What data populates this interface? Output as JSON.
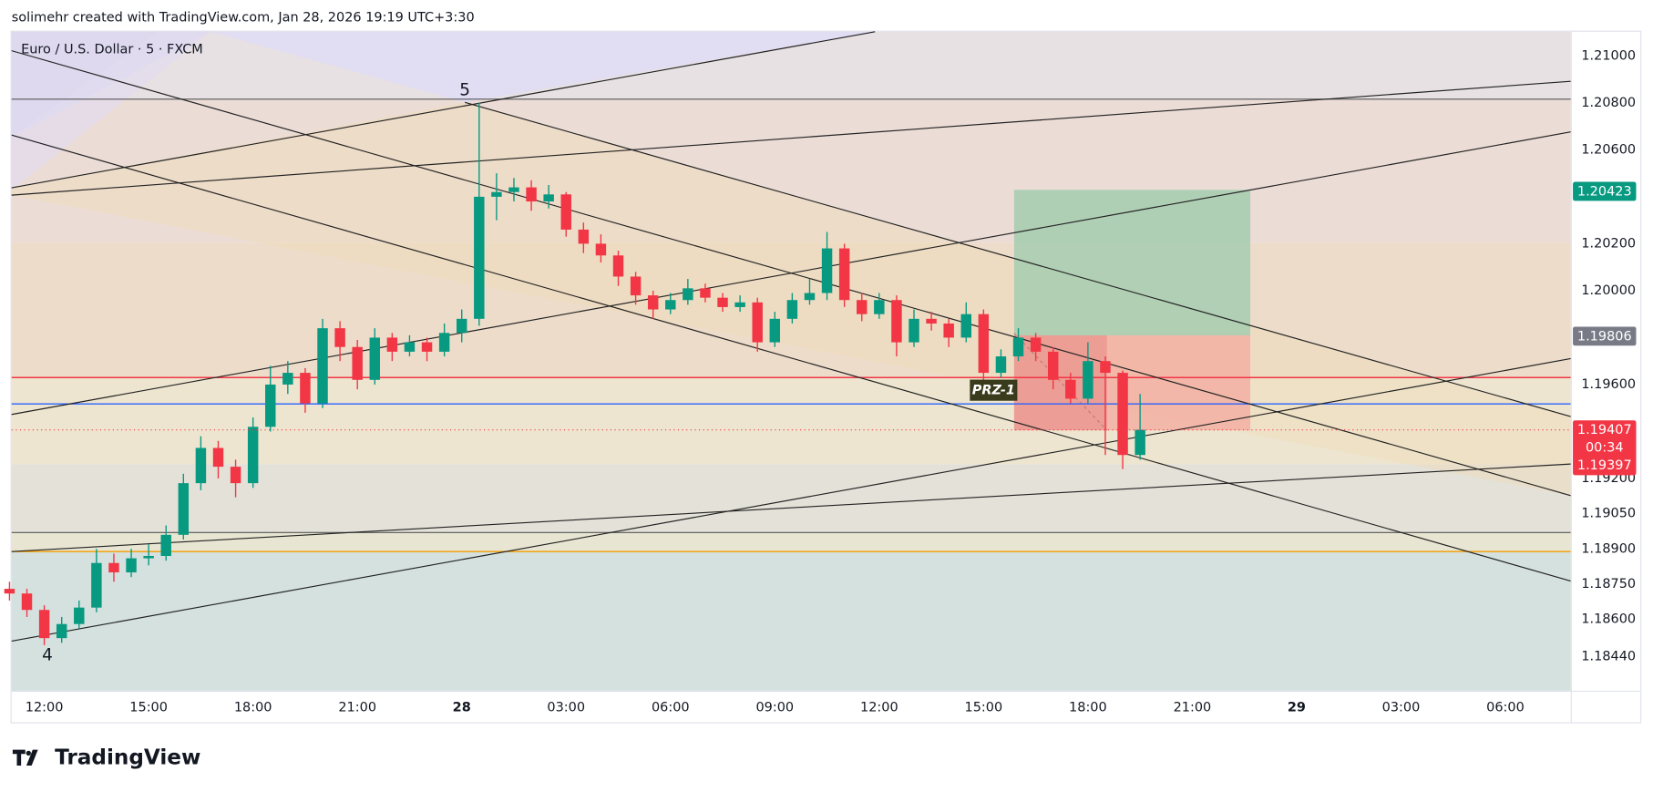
{
  "header": "solimehr created with TradingView.com, Jan 28, 2026 19:19 UTC+3:30",
  "logo": "TradingView",
  "chart_data": {
    "type": "candlestick",
    "title": "Euro / U.S. Dollar · 5 · FXCM",
    "annotations": [
      "5",
      "4",
      "PRZ-1"
    ],
    "up_color": "#089981",
    "down_color": "#f23645",
    "grid": false,
    "x": [
      11,
      11.5,
      12,
      12.5,
      13,
      13.5,
      14,
      14.5,
      15,
      15.5,
      16,
      16.5,
      17,
      17.5,
      18,
      18.5,
      19,
      19.5,
      20,
      20.5,
      21,
      21.5,
      22,
      22.5,
      23,
      23.5,
      24,
      24.5,
      25,
      25.5,
      26,
      26.5,
      27,
      27.5,
      28,
      28.5,
      29,
      29.5,
      30,
      30.5,
      31,
      31.5,
      32,
      32.5,
      33,
      33.5,
      34,
      34.5,
      35,
      35.5,
      36,
      36.5,
      37,
      37.5,
      38,
      38.5,
      39,
      39.5,
      40,
      40.5,
      41,
      41.5,
      42,
      42.5,
      43,
      43.5
    ],
    "open": [
      1.1873,
      1.1871,
      1.1864,
      1.1852,
      1.1858,
      1.1865,
      1.1884,
      1.188,
      1.1886,
      1.1887,
      1.1896,
      1.1918,
      1.1933,
      1.1925,
      1.1918,
      1.1942,
      1.196,
      1.1965,
      1.1952,
      1.1984,
      1.1976,
      1.1962,
      1.198,
      1.1974,
      1.1978,
      1.1974,
      1.1982,
      1.1988,
      1.204,
      1.2042,
      1.2044,
      1.2038,
      1.2041,
      1.2026,
      1.202,
      1.2015,
      1.2006,
      1.1998,
      1.1992,
      1.1996,
      1.2001,
      1.1997,
      1.1993,
      1.1995,
      1.1978,
      1.1988,
      1.1996,
      1.1999,
      1.2018,
      1.1996,
      1.199,
      1.1996,
      1.1978,
      1.1988,
      1.1986,
      1.198,
      1.199,
      1.1965,
      1.1972,
      1.198,
      1.1974,
      1.1962,
      1.1954,
      1.197,
      1.1965,
      1.193
    ],
    "high": [
      1.1876,
      1.1873,
      1.1866,
      1.1861,
      1.1868,
      1.189,
      1.1888,
      1.189,
      1.1892,
      1.19,
      1.1922,
      1.1938,
      1.1936,
      1.1928,
      1.1946,
      1.1968,
      1.197,
      1.1967,
      1.1988,
      1.1987,
      1.1979,
      1.1984,
      1.1982,
      1.1981,
      1.198,
      1.1986,
      1.1992,
      1.208,
      1.205,
      1.2048,
      1.2047,
      1.2045,
      1.2042,
      1.2029,
      1.2024,
      1.2017,
      1.2008,
      1.2,
      1.1999,
      1.2005,
      1.2003,
      1.1999,
      1.1998,
      1.1997,
      1.1991,
      1.1999,
      1.2005,
      1.2025,
      1.202,
      1.1999,
      1.1999,
      1.1998,
      1.1992,
      1.1991,
      1.1988,
      1.1995,
      1.1992,
      1.1975,
      1.1984,
      1.1982,
      1.1976,
      1.1965,
      1.1978,
      1.1972,
      1.1966,
      1.1956
    ],
    "low": [
      1.1868,
      1.1861,
      1.1849,
      1.185,
      1.1856,
      1.1863,
      1.1876,
      1.1878,
      1.1883,
      1.1885,
      1.1894,
      1.1915,
      1.192,
      1.1912,
      1.1916,
      1.194,
      1.1956,
      1.1948,
      1.195,
      1.197,
      1.1958,
      1.196,
      1.197,
      1.1972,
      1.197,
      1.1972,
      1.1978,
      1.1985,
      1.203,
      1.2038,
      1.2034,
      1.2035,
      1.2023,
      1.2016,
      1.2012,
      1.2002,
      1.1994,
      1.1988,
      1.199,
      1.1994,
      1.1995,
      1.1991,
      1.1991,
      1.1974,
      1.1976,
      1.1986,
      1.1994,
      1.1996,
      1.1993,
      1.1987,
      1.1988,
      1.1972,
      1.1976,
      1.1983,
      1.1976,
      1.1978,
      1.1962,
      1.1963,
      1.197,
      1.197,
      1.1958,
      1.1952,
      1.1952,
      1.193,
      1.1924,
      1.1928
    ],
    "close": [
      1.1871,
      1.1864,
      1.1852,
      1.1858,
      1.1865,
      1.1884,
      1.188,
      1.1886,
      1.1887,
      1.1896,
      1.1918,
      1.1933,
      1.1925,
      1.1918,
      1.1942,
      1.196,
      1.1965,
      1.1952,
      1.1984,
      1.1976,
      1.1962,
      1.198,
      1.1974,
      1.1978,
      1.1974,
      1.1982,
      1.1988,
      1.204,
      1.2042,
      1.2044,
      1.2038,
      1.2041,
      1.2026,
      1.202,
      1.2015,
      1.2006,
      1.1998,
      1.1992,
      1.1996,
      1.2001,
      1.1997,
      1.1993,
      1.1995,
      1.1978,
      1.1988,
      1.1996,
      1.1999,
      1.2018,
      1.1996,
      1.199,
      1.1996,
      1.1978,
      1.1988,
      1.1986,
      1.198,
      1.199,
      1.1965,
      1.1972,
      1.198,
      1.1974,
      1.1962,
      1.1954,
      1.197,
      1.1965,
      1.193,
      1.19407
    ],
    "xlim": [
      11.06,
      55.88
    ],
    "ylim": [
      1.18296,
      1.21103
    ],
    "xticks": [
      {
        "value": 12,
        "label": "12:00"
      },
      {
        "value": 15,
        "label": "15:00"
      },
      {
        "value": 18,
        "label": "18:00"
      },
      {
        "value": 21,
        "label": "21:00"
      },
      {
        "value": 24,
        "label": "28"
      },
      {
        "value": 27,
        "label": "03:00"
      },
      {
        "value": 30,
        "label": "06:00"
      },
      {
        "value": 33,
        "label": "09:00"
      },
      {
        "value": 36,
        "label": "12:00"
      },
      {
        "value": 39,
        "label": "15:00"
      },
      {
        "value": 42,
        "label": "18:00"
      },
      {
        "value": 45,
        "label": "21:00"
      },
      {
        "value": 48,
        "label": "29"
      },
      {
        "value": 51,
        "label": "03:00"
      },
      {
        "value": 54,
        "label": "06:00"
      }
    ],
    "yticks": [
      {
        "value": 1.21,
        "label": "1.21000"
      },
      {
        "value": 1.208,
        "label": "1.20800"
      },
      {
        "value": 1.206,
        "label": "1.20600"
      },
      {
        "value": 1.202,
        "label": "1.20200"
      },
      {
        "value": 1.2,
        "label": "1.20000"
      },
      {
        "value": 1.196,
        "label": "1.19600"
      },
      {
        "value": 1.192,
        "label": "1.19200"
      },
      {
        "value": 1.1905,
        "label": "1.19050"
      },
      {
        "value": 1.189,
        "label": "1.18900"
      },
      {
        "value": 1.1875,
        "label": "1.18750"
      },
      {
        "value": 1.186,
        "label": "1.18600"
      },
      {
        "value": 1.1844,
        "label": "1.18440"
      }
    ],
    "price_labels": [
      1.20423,
      1.19806,
      1.19407
    ],
    "price_label_colors": [
      "#089981",
      "#787b86",
      "#f23645"
    ],
    "countdown": "00:34",
    "bid_label": 1.19397
  }
}
